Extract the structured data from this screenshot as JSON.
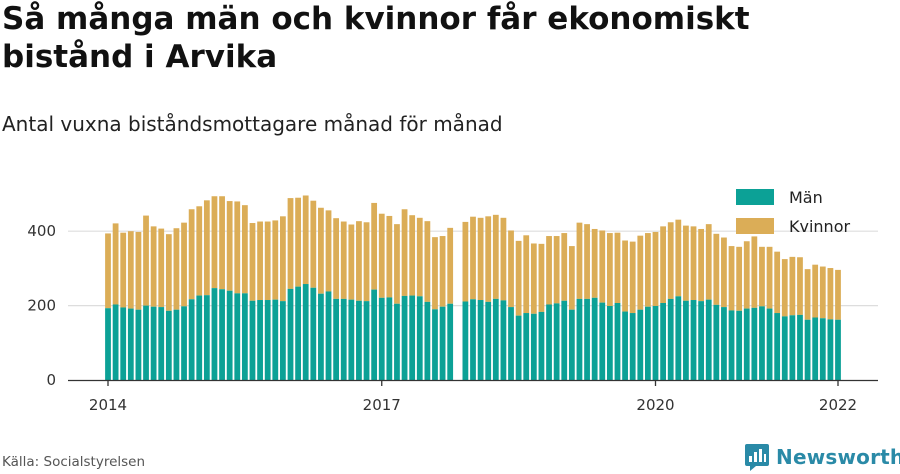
{
  "title": "Så många män och kvinnor får ekonomiskt bistånd i Arvika",
  "subtitle": "Antal vuxna biståndsmottagare månad för månad",
  "source": "Källa: Socialstyrelsen",
  "brand": {
    "name": "Newsworthy",
    "logo_icon": "newsworthy-bar-chart-icon"
  },
  "colors": {
    "men": "#0ca196",
    "women": "#dbad57",
    "grid": "#dddddd",
    "axis": "#333333",
    "brand": "#2a8aa7"
  },
  "chart_data": {
    "type": "bar",
    "stacked": true,
    "x_start": "2014-01",
    "x_step": "month",
    "x_ticks": [
      "2014",
      "2017",
      "2020",
      "2022"
    ],
    "ylim": [
      0,
      500
    ],
    "y_ticks": [
      0,
      200,
      400
    ],
    "grid": true,
    "legend_position": "top-right",
    "series": [
      {
        "name": "Män",
        "values": [
          193,
          203,
          195,
          192,
          189,
          200,
          197,
          196,
          186,
          189,
          198,
          217,
          227,
          228,
          247,
          244,
          240,
          233,
          233,
          213,
          215,
          215,
          216,
          212,
          245,
          251,
          258,
          248,
          232,
          238,
          218,
          218,
          216,
          213,
          212,
          243,
          221,
          222,
          205,
          226,
          227,
          225,
          210,
          190,
          197,
          205,
          null,
          211,
          217,
          215,
          210,
          218,
          214,
          196,
          173,
          180,
          178,
          183,
          203,
          206,
          213,
          189,
          218,
          218,
          221,
          208,
          199,
          207,
          184,
          180,
          189,
          197,
          199,
          207,
          218,
          225,
          213,
          215,
          212,
          216,
          202,
          196,
          187,
          186,
          192,
          194,
          198,
          192,
          180,
          171,
          174,
          175,
          162,
          168,
          166,
          163,
          162
        ]
      },
      {
        "name": "Kvinnor",
        "values": [
          201,
          218,
          201,
          208,
          209,
          242,
          216,
          211,
          206,
          219,
          225,
          242,
          240,
          255,
          247,
          250,
          241,
          247,
          237,
          209,
          211,
          211,
          213,
          228,
          244,
          239,
          238,
          234,
          231,
          218,
          217,
          208,
          202,
          214,
          212,
          233,
          226,
          219,
          214,
          233,
          216,
          211,
          217,
          194,
          190,
          204,
          null,
          214,
          222,
          221,
          230,
          226,
          222,
          206,
          201,
          209,
          189,
          183,
          184,
          181,
          182,
          171,
          205,
          201,
          185,
          194,
          196,
          189,
          191,
          192,
          199,
          198,
          199,
          206,
          206,
          206,
          202,
          198,
          194,
          203,
          191,
          187,
          173,
          172,
          181,
          192,
          160,
          166,
          165,
          154,
          157,
          155,
          136,
          142,
          139,
          138,
          134
        ]
      }
    ]
  }
}
